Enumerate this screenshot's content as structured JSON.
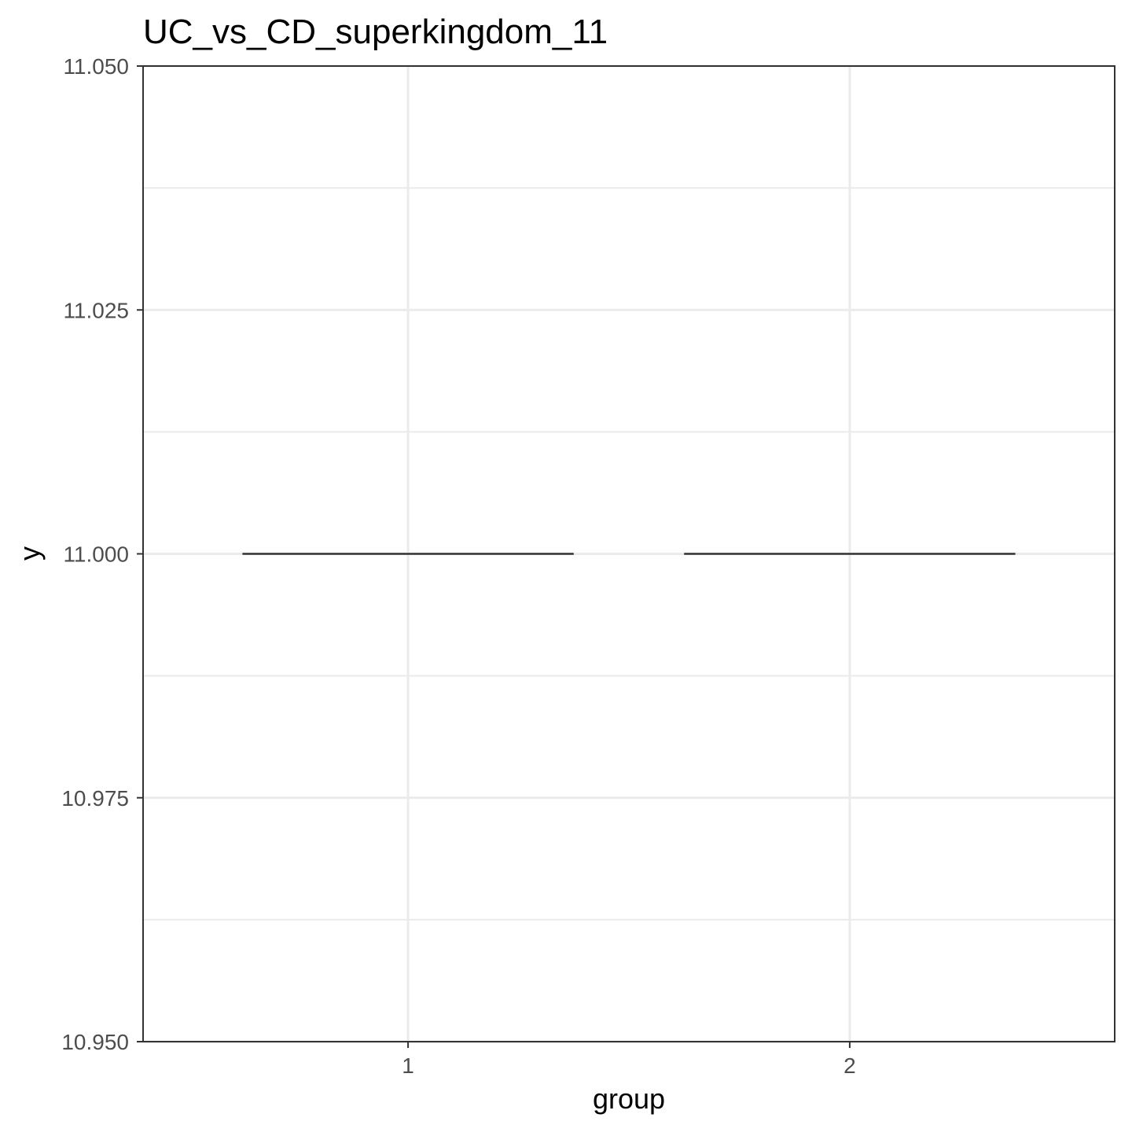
{
  "chart_data": {
    "type": "box",
    "title": "UC_vs_CD_superkingdom_11",
    "xlabel": "group",
    "ylabel": "y",
    "categories": [
      "1",
      "2"
    ],
    "series": [
      {
        "category": "1",
        "min": 11.0,
        "q1": 11.0,
        "median": 11.0,
        "q3": 11.0,
        "max": 11.0
      },
      {
        "category": "2",
        "min": 11.0,
        "q1": 11.0,
        "median": 11.0,
        "q3": 11.0,
        "max": 11.0
      }
    ],
    "ylim": [
      10.95,
      11.05
    ],
    "y_ticks": [
      "10.950",
      "10.975",
      "11.000",
      "11.025",
      "11.050"
    ],
    "y_tick_values": [
      10.95,
      10.975,
      11.0,
      11.025,
      11.05
    ],
    "y_minor_values": [
      10.9625,
      10.9875,
      11.0125,
      11.0375
    ],
    "grid": true,
    "theme": "bw"
  }
}
